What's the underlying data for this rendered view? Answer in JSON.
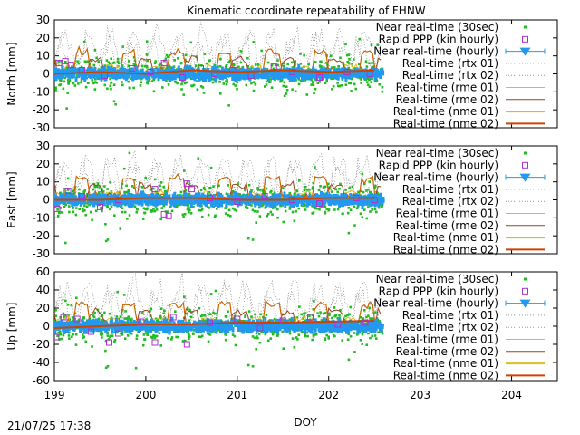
{
  "figure": {
    "title": "Kinematic coordinate repeatability of FHNW",
    "xlabel": "DOY",
    "timestamp": "21/07/25 17:38",
    "x_ticks": [
      "199",
      "200",
      "201",
      "202",
      "203",
      "204"
    ]
  },
  "legend": [
    {
      "label": "Near real-time (30sec)",
      "color": "#22bb22",
      "style": "point"
    },
    {
      "label": "Rapid PPP (kin hourly)",
      "color": "#aa33cc",
      "style": "square"
    },
    {
      "label": "Near real-time (hourly)",
      "color": "#2299ee",
      "style": "triangle-errorbar"
    },
    {
      "label": "Real-time (rtx 01)",
      "color": "#999999",
      "style": "dotted"
    },
    {
      "label": "Real-time (rtx 02)",
      "color": "#999999",
      "style": "dotted"
    },
    {
      "label": "Real-time (rme 01)",
      "color": "#ddbb22",
      "style": "thin"
    },
    {
      "label": "Real-time (rme 02)",
      "color": "#994422",
      "style": "thin"
    },
    {
      "label": "Real-time (nme 01)",
      "color": "#ddbb22",
      "style": "thick"
    },
    {
      "label": "Real-time (nme 02)",
      "color": "#cc4400",
      "style": "thick"
    }
  ],
  "chart_data": [
    {
      "type": "scatter",
      "ylabel": "North [mm]",
      "xlim": [
        199,
        204.5
      ],
      "ylim": [
        -30,
        30
      ],
      "yticks": [
        "30",
        "20",
        "10",
        "0",
        "-10",
        "-20",
        "-30"
      ],
      "series": [
        {
          "name": "Rapid PPP (kin hourly)",
          "x": [
            199.05,
            199.12,
            199.18,
            199.3,
            199.55,
            199.85,
            200.05,
            200.2,
            200.4,
            200.6,
            200.75,
            200.95,
            201.15,
            201.4,
            201.6,
            201.9,
            202.2,
            202.45
          ],
          "y": [
            6,
            7,
            5,
            2,
            -1,
            3,
            1,
            6,
            -2,
            3,
            0,
            2,
            -1,
            4,
            1,
            -2,
            1,
            0
          ]
        },
        {
          "name": "Real-time (nme 02)",
          "x": [
            199.0,
            199.5,
            200.0,
            200.5,
            201.0,
            201.5,
            202.0,
            202.5
          ],
          "y": [
            0,
            1,
            0,
            2,
            1,
            2,
            1,
            2
          ]
        }
      ]
    },
    {
      "type": "scatter",
      "ylabel": "East [mm]",
      "xlim": [
        199,
        204.5
      ],
      "ylim": [
        -30,
        30
      ],
      "yticks": [
        "30",
        "20",
        "10",
        "0",
        "-10",
        "-20",
        "-30"
      ],
      "series": [
        {
          "name": "Rapid PPP (kin hourly)",
          "x": [
            199.03,
            199.15,
            199.3,
            199.5,
            199.7,
            200.1,
            200.2,
            200.25,
            200.45,
            200.5,
            200.7,
            201.0,
            201.3,
            201.6,
            201.9,
            202.3,
            202.5
          ],
          "y": [
            -5,
            5,
            2,
            -4,
            0,
            6,
            -8,
            -9,
            9,
            6,
            1,
            -1,
            2,
            0,
            -2,
            1,
            0
          ]
        },
        {
          "name": "Real-time (nme 02)",
          "x": [
            199.0,
            199.5,
            200.0,
            200.5,
            201.0,
            201.5,
            202.0,
            202.5
          ],
          "y": [
            0,
            0,
            1,
            1,
            0,
            0,
            1,
            1
          ]
        }
      ]
    },
    {
      "type": "scatter",
      "ylabel": "Up [mm]",
      "xlim": [
        199,
        204.5
      ],
      "ylim": [
        -60,
        60
      ],
      "yticks": [
        "60",
        "40",
        "20",
        "0",
        "-20",
        "-40",
        "-60"
      ],
      "series": [
        {
          "name": "Rapid PPP (kin hourly)",
          "x": [
            199.02,
            199.1,
            199.25,
            199.4,
            199.6,
            199.7,
            199.95,
            200.1,
            200.3,
            200.45,
            200.7,
            201.0,
            201.25,
            201.5,
            201.8,
            202.1,
            202.4
          ],
          "y": [
            -12,
            10,
            8,
            -6,
            -18,
            -8,
            5,
            -18,
            10,
            -20,
            4,
            8,
            -2,
            6,
            10,
            2,
            4
          ]
        },
        {
          "name": "Real-time (nme 02)",
          "x": [
            199.0,
            199.5,
            200.0,
            200.5,
            201.0,
            201.5,
            202.0,
            202.5
          ],
          "y": [
            -2,
            0,
            2,
            2,
            4,
            4,
            5,
            6
          ]
        }
      ]
    }
  ]
}
